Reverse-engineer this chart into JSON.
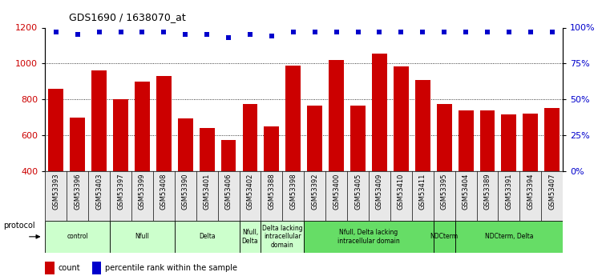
{
  "title": "GDS1690 / 1638070_at",
  "samples": [
    "GSM53393",
    "GSM53396",
    "GSM53403",
    "GSM53397",
    "GSM53399",
    "GSM53408",
    "GSM53390",
    "GSM53401",
    "GSM53406",
    "GSM53402",
    "GSM53388",
    "GSM53398",
    "GSM53392",
    "GSM53400",
    "GSM53405",
    "GSM53409",
    "GSM53410",
    "GSM53411",
    "GSM53395",
    "GSM53404",
    "GSM53389",
    "GSM53391",
    "GSM53394",
    "GSM53407"
  ],
  "counts": [
    860,
    700,
    960,
    800,
    900,
    930,
    695,
    640,
    575,
    775,
    650,
    990,
    765,
    1020,
    765,
    1055,
    985,
    910,
    775,
    740,
    740,
    715,
    720,
    750
  ],
  "percentiles": [
    97,
    95,
    97,
    97,
    97,
    97,
    95,
    95,
    93,
    95,
    94,
    97,
    97,
    97,
    97,
    97,
    97,
    97,
    97,
    97,
    97,
    97,
    97,
    97
  ],
  "bar_color": "#cc0000",
  "dot_color": "#0000cc",
  "ylim_left": [
    400,
    1200
  ],
  "ylim_right": [
    0,
    100
  ],
  "yticks_left": [
    400,
    600,
    800,
    1000,
    1200
  ],
  "yticks_right": [
    0,
    25,
    50,
    75,
    100
  ],
  "grid_values": [
    600,
    800,
    1000
  ],
  "protocol_groups": [
    {
      "label": "control",
      "start": 0,
      "end": 2,
      "color": "#ccffcc"
    },
    {
      "label": "Nfull",
      "start": 3,
      "end": 5,
      "color": "#ccffcc"
    },
    {
      "label": "Delta",
      "start": 6,
      "end": 8,
      "color": "#ccffcc"
    },
    {
      "label": "Nfull,\nDelta",
      "start": 9,
      "end": 9,
      "color": "#ccffcc"
    },
    {
      "label": "Delta lacking\nintracellular\ndomain",
      "start": 10,
      "end": 11,
      "color": "#ccffcc"
    },
    {
      "label": "Nfull, Delta lacking\nintracellular domain",
      "start": 12,
      "end": 17,
      "color": "#66dd66"
    },
    {
      "label": "NDCterm",
      "start": 18,
      "end": 18,
      "color": "#66dd66"
    },
    {
      "label": "NDCterm, Delta",
      "start": 19,
      "end": 23,
      "color": "#66dd66"
    }
  ],
  "bg_color": "#ffffff",
  "tick_label_color_left": "#cc0000",
  "tick_label_color_right": "#0000cc",
  "legend_count_color": "#cc0000",
  "legend_pct_color": "#0000cc"
}
